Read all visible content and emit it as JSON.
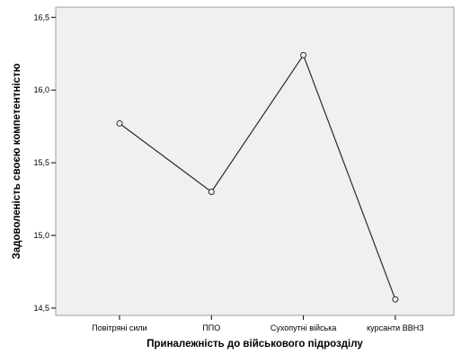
{
  "chart_data": {
    "type": "line",
    "title": "",
    "xlabel": "Приналежність до військового підрозділу",
    "ylabel": "Задоволеність своєю компетентністю",
    "categories": [
      "Повітряні сили",
      "ППО",
      "Сухопутні війська",
      "курсанти ВВНЗ"
    ],
    "series": [
      {
        "values": [
          15.77,
          15.3,
          16.24,
          14.56
        ]
      }
    ],
    "ylim": [
      14.45,
      16.57
    ],
    "yticks": [
      "14,5",
      "15,0",
      "15,5",
      "16,0",
      "16,5"
    ],
    "ytick_values": [
      14.5,
      15.0,
      15.5,
      16.0,
      16.5
    ],
    "grid": false,
    "legend": "none",
    "colors": {
      "plot_background": "#f0f0f0",
      "frame": "#a0a0a0",
      "line": "#2b2b2b",
      "marker_fill": "#f0f0f0",
      "text": "#000000"
    }
  }
}
